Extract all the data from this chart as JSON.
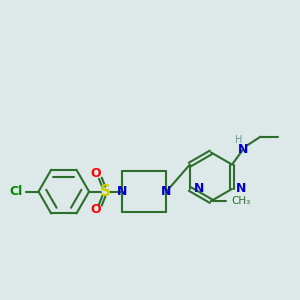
{
  "bg_color": "#dde8e8",
  "bond_color": "#2d6e2d",
  "n_color": "#0000cc",
  "s_color": "#cccc00",
  "o_color": "#ff0000",
  "cl_color": "#008800",
  "h_color": "#5f9ea0",
  "line_width": 1.5,
  "font_size": 9,
  "xlim": [
    0,
    10
  ],
  "ylim": [
    0,
    10
  ]
}
